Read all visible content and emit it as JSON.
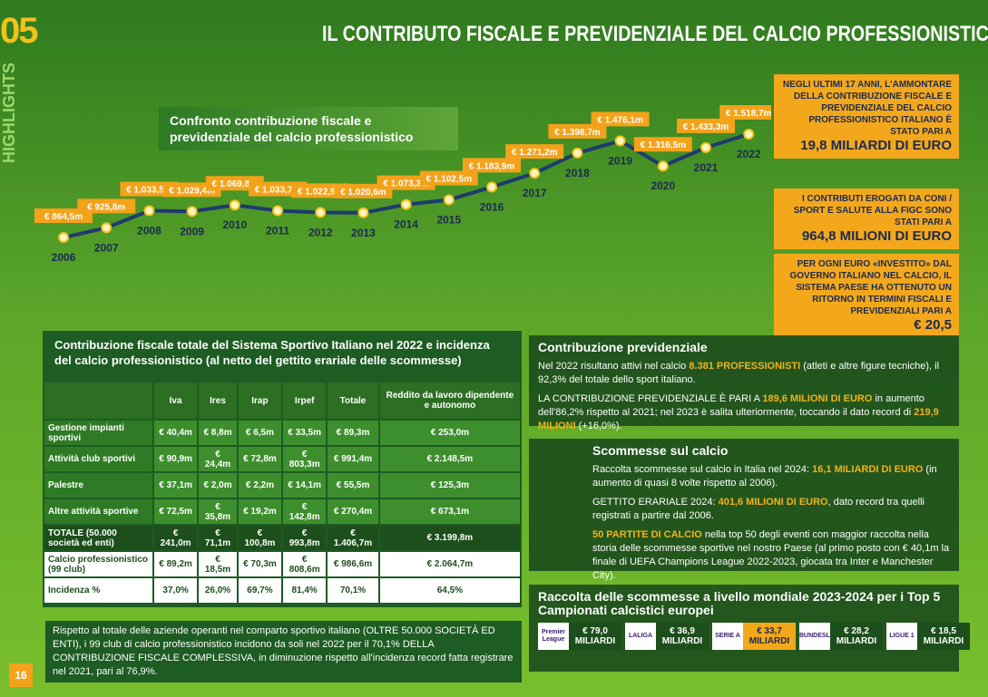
{
  "section_number": "05",
  "section_label": "HIGHLIGHTS",
  "page_number": "16",
  "title": "IL CONTRIBUTO FISCALE E PREVIDENZIALE DEL CALCIO PROFESSIONISTICO",
  "chart_data": {
    "type": "line",
    "title": "Confronto contribuzione fiscale e previdenziale del calcio professionistico",
    "categories": [
      "2006",
      "2007",
      "2008",
      "2009",
      "2010",
      "2011",
      "2012",
      "2013",
      "2014",
      "2015",
      "2016",
      "2017",
      "2018",
      "2019",
      "2020",
      "2021",
      "2022"
    ],
    "values": [
      864.5,
      925.8,
      1033.5,
      1029.4,
      1069.8,
      1033.7,
      1022.9,
      1020.6,
      1073.3,
      1102.5,
      1183.9,
      1271.2,
      1398.7,
      1476.1,
      1316.5,
      1433.3,
      1518.7
    ],
    "value_labels": [
      "€ 864,5m",
      "€ 925,8m",
      "€ 1.033,5m",
      "€ 1.029,4m",
      "€ 1.069,8m",
      "€ 1.033,7m",
      "€ 1.022,9m",
      "€ 1.020,6m",
      "€ 1.073,3m",
      "€ 1.102,5m",
      "€ 1.183,9m",
      "€ 1.271,2m",
      "€ 1.398,7m",
      "€ 1.476,1m",
      "€ 1.316,5m",
      "€ 1.433,3m",
      "€ 1.518,7m"
    ],
    "color": "#1f3b6e"
  },
  "callouts": [
    {
      "text": "NEGLI ULTIMI 17 ANNI, L'AMMONTARE DELLA CONTRIBUZIONE FISCALE E PREVIDENZIALE DEL CALCIO PROFESSIONISTICO ITALIANO È STATO PARI A",
      "highlight": "19,8 MILIARDI DI EURO"
    },
    {
      "text": "I CONTRIBUTI EROGATI DA CONI / SPORT E SALUTE ALLA FIGC SONO STATI PARI A",
      "highlight": "964,8 MILIONI DI EURO"
    },
    {
      "text": "PER OGNI EURO «INVESTITO» DAL GOVERNO ITALIANO NEL CALCIO, IL SISTEMA PAESE HA OTTENUTO UN RITORNO IN TERMINI FISCALI E PREVIDENZIALI PARI A",
      "highlight": "€ 20,5"
    }
  ],
  "table": {
    "title": "Contribuzione fiscale totale del Sistema Sportivo Italiano nel 2022 e incidenza del calcio professionistico (al netto del gettito erariale delle scommesse)",
    "columns": [
      "Iva",
      "Ires",
      "Irap",
      "Irpef",
      "Totale",
      "Reddito da lavoro dipendente e autonomo"
    ],
    "rows": [
      [
        "Gestione impianti sportivi",
        "€ 40,4m",
        "€ 8,8m",
        "€ 6,5m",
        "€ 33,5m",
        "€ 89,3m",
        "€ 253,0m"
      ],
      [
        "Attività club sportivi",
        "€ 90,9m",
        "€ 24,4m",
        "€ 72,8m",
        "€ 803,3m",
        "€ 991,4m",
        "€ 2.148,5m"
      ],
      [
        "Palestre",
        "€ 37,1m",
        "€ 2,0m",
        "€ 2,2m",
        "€ 14,1m",
        "€ 55,5m",
        "€ 125,3m"
      ],
      [
        "Altre attività sportive",
        "€ 72,5m",
        "€ 35,8m",
        "€ 19,2m",
        "€ 142,8m",
        "€ 270,4m",
        "€ 673,1m"
      ],
      [
        "TOTALE (50.000 società ed enti)",
        "€ 241,0m",
        "€ 71,1m",
        "€ 100,8m",
        "€ 993,8m",
        "€ 1.406,7m",
        "€ 3.199,8m"
      ],
      [
        "Calcio professionistico (99 club)",
        "€ 89,2m",
        "€ 18,5m",
        "€ 70,3m",
        "€ 808,6m",
        "€ 986,6m",
        "€ 2.064,7m"
      ],
      [
        "Incidenza %",
        "37,0%",
        "26,0%",
        "69,7%",
        "81,4%",
        "70,1%",
        "64,5%"
      ]
    ],
    "note": "Rispetto al totale delle aziende operanti nel comparto sportivo italiano (OLTRE 50.000 SOCIETÀ ED ENTI), i 99 club di calcio professionistico incidono da soli nel 2022 per il 70,1% DELLA CONTRIBUZIONE FISCALE COMPLESSIVA, in diminuzione rispetto all'incidenza record fatta registrare nel 2021, pari al 76,9%."
  },
  "previdenziale": {
    "title": "Contribuzione previdenziale",
    "paragraphs": [
      [
        "Nel 2022 risultano attivi nel calcio ",
        "8.381 PROFESSIONISTI",
        " (atleti e altre figure tecniche), il 92,3% del totale dello sport italiano."
      ],
      [
        "LA CONTRIBUZIONE PREVIDENZIALE È PARI A ",
        "189,6 MILIONI DI EURO",
        " in aumento dell'86,2% rispetto al 2021; nel 2023 è salita ulteriormente, toccando il dato record di ",
        "219,9 MILIONI",
        " (+16,0%)."
      ]
    ]
  },
  "scommesse": {
    "title": "Scommesse sul calcio",
    "paragraphs": [
      [
        "Raccolta scommesse sul calcio in Italia nel 2024: ",
        "16,1 MILIARDI DI EURO",
        " (in aumento di quasi 8 volte rispetto al 2006)."
      ],
      [
        "GETTITO ERARIALE 2024: ",
        "401,6 MILIONI DI EURO",
        ", dato record tra quelli registrati a partire dal 2006."
      ],
      [
        "",
        "50 PARTITE DI CALCIO",
        " nella top 50 degli eventi con maggior raccolta nella storia delle scommesse sportive nel nostro Paese (al primo posto con € 40,1m la finale di UEFA Champions League 2022-2023, giocata tra Inter e Manchester City)."
      ]
    ]
  },
  "raccolta": {
    "title": "Raccolta delle scommesse a livello mondiale 2023-2024 per i Top 5 Campionati calcistici europei",
    "leagues": [
      {
        "logo": "Premier League",
        "value": "€ 79,0 MILIARDI"
      },
      {
        "logo": "LALIGA",
        "value": "€ 36,9 MILIARDI"
      },
      {
        "logo": "SERIE A",
        "value": "€ 33,7 MILIARDI"
      },
      {
        "logo": "BUNDESLIGA",
        "value": "€ 28,2 MILIARDI"
      },
      {
        "logo": "LIGUE 1",
        "value": "€ 18,5 MILIARDI"
      }
    ]
  }
}
